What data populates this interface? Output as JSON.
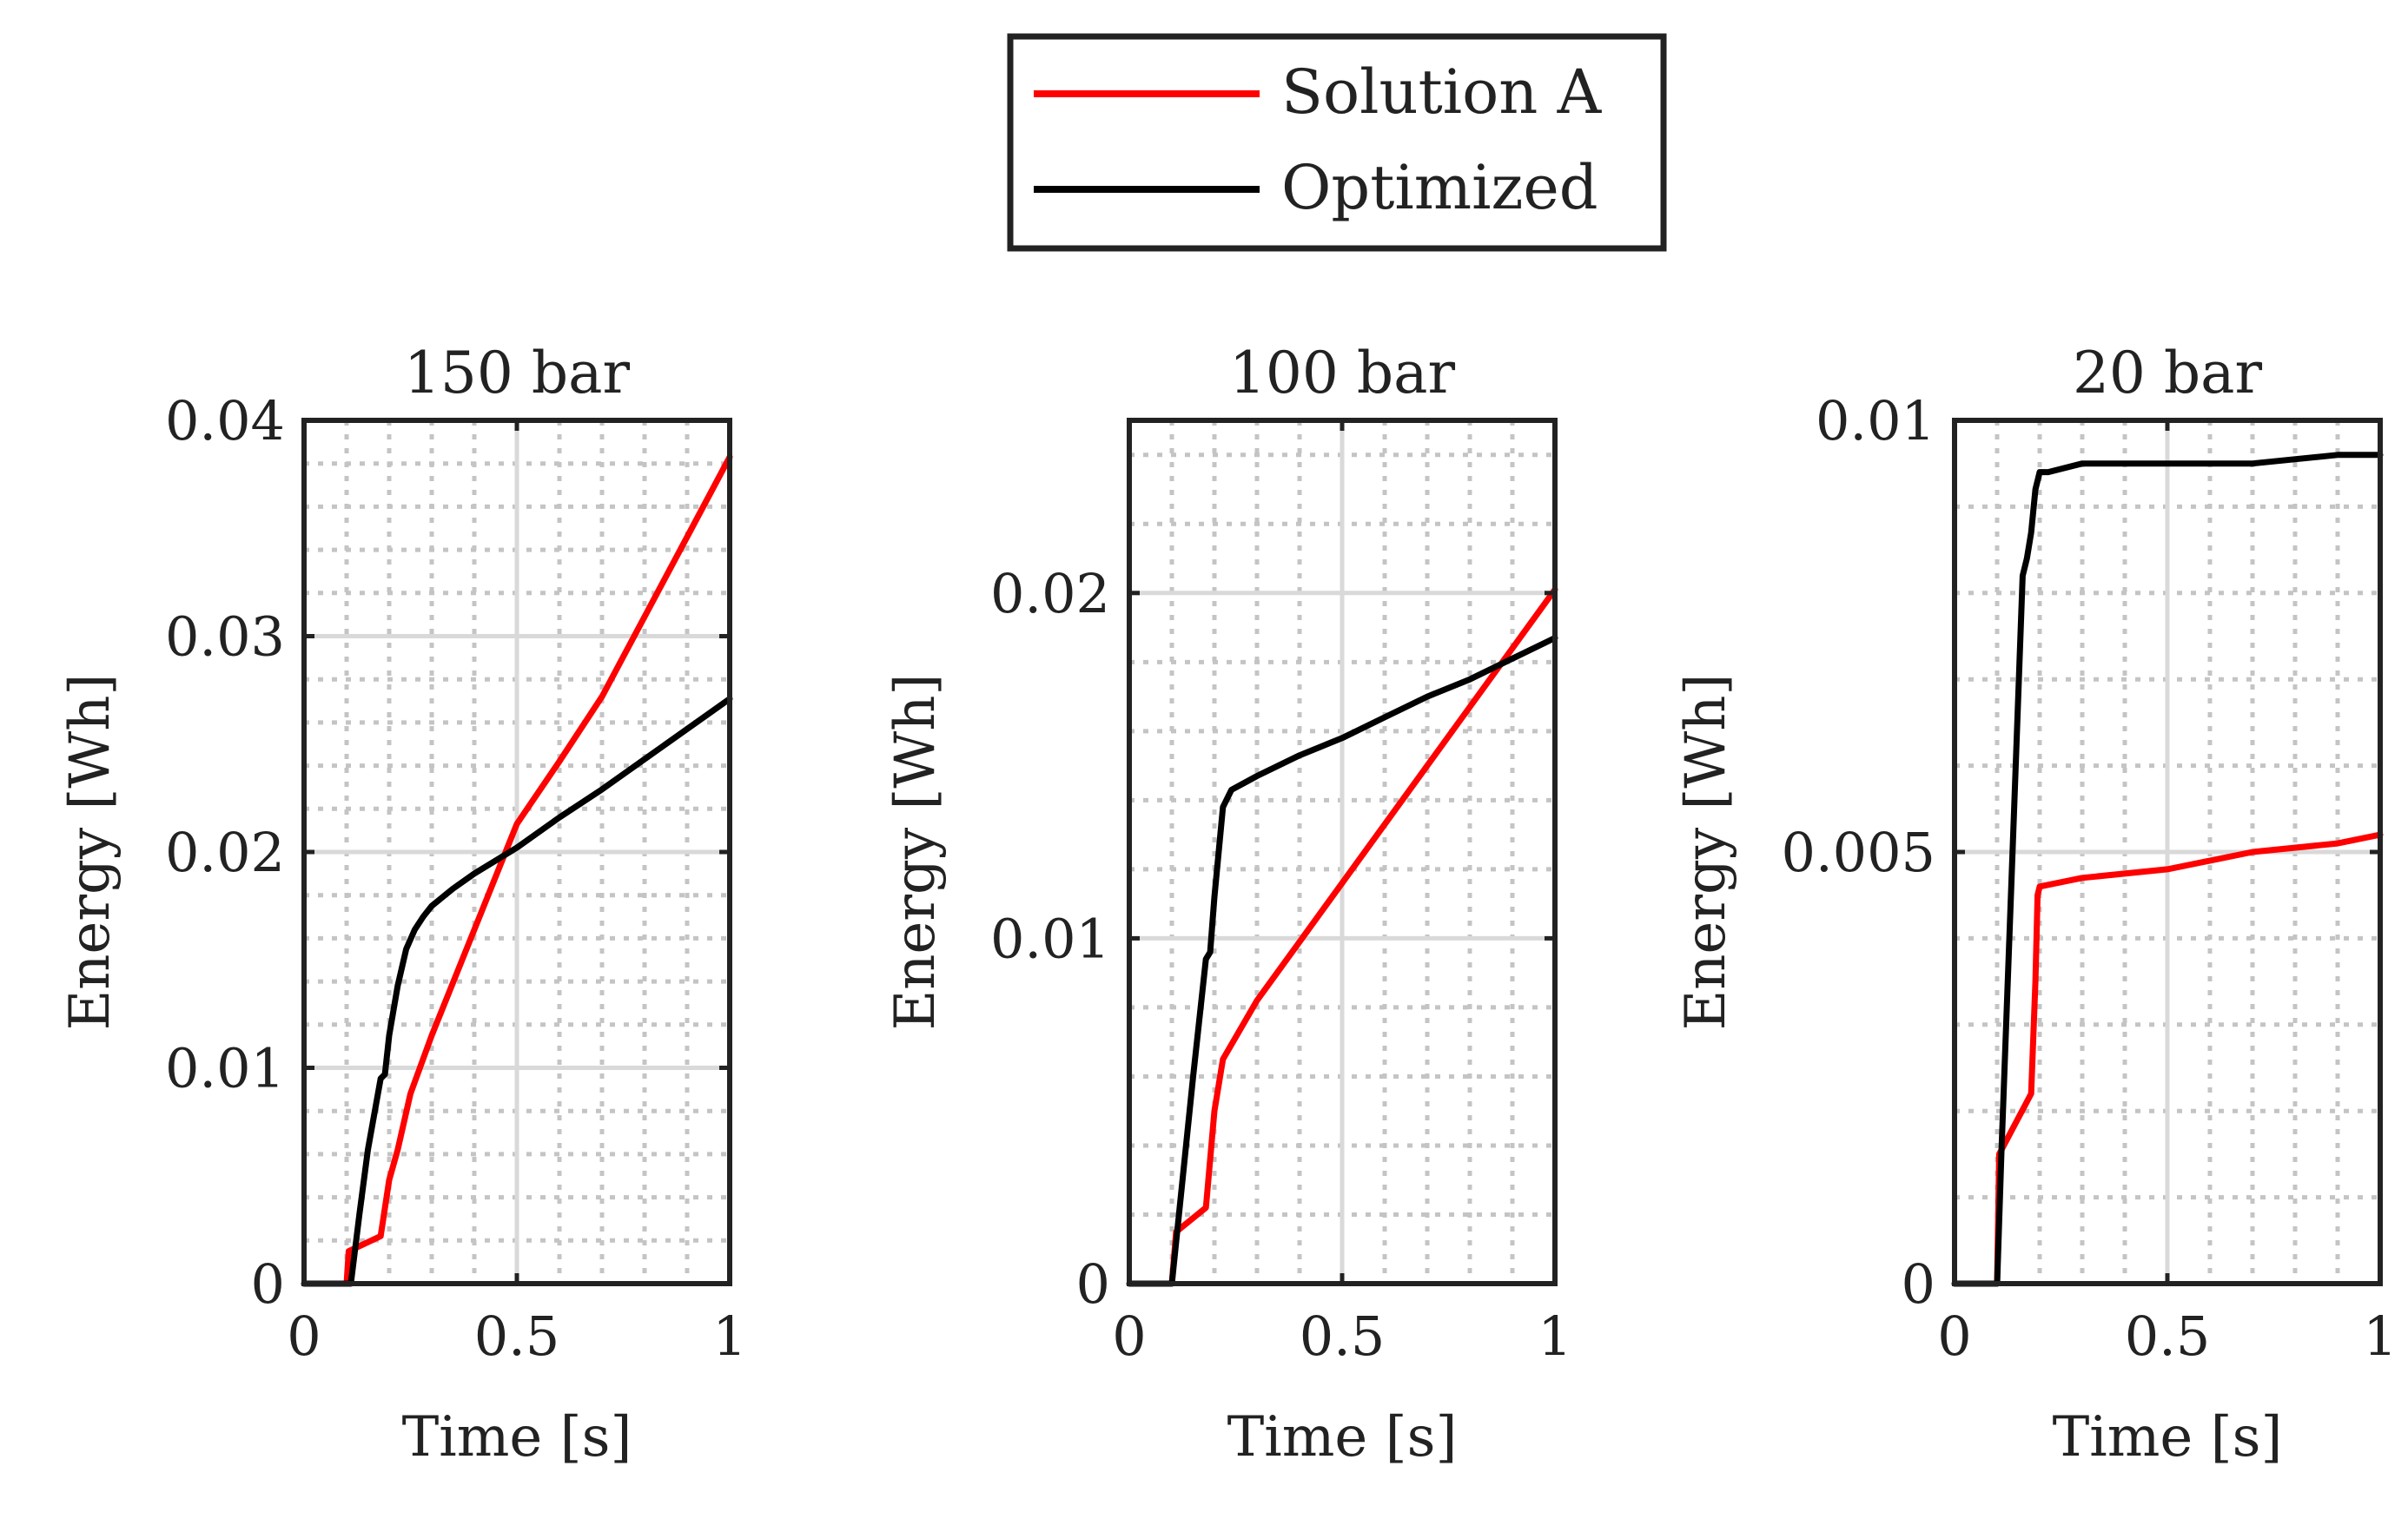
{
  "legend": {
    "items": [
      {
        "label": "Solution A",
        "color": "#ff0000"
      },
      {
        "label": "Optimized",
        "color": "#000000"
      }
    ]
  },
  "chart_data": [
    {
      "type": "line",
      "title": "150 bar",
      "xlabel": "Time [s]",
      "ylabel": "Energy [Wh]",
      "xlim": [
        0,
        1
      ],
      "ylim": [
        0,
        0.04
      ],
      "xticks": [
        0,
        0.5,
        1
      ],
      "xtick_labels": [
        "0",
        "0.5",
        "1"
      ],
      "yticks": [
        0,
        0.01,
        0.02,
        0.03,
        0.04
      ],
      "ytick_labels": [
        "0",
        "0.01",
        "0.02",
        "0.03",
        "0.04"
      ],
      "grid": true,
      "series": [
        {
          "name": "Solution A",
          "color": "#ff0000",
          "x": [
            0.1,
            0.105,
            0.18,
            0.2,
            0.22,
            0.25,
            0.3,
            0.4,
            0.5,
            0.6,
            0.7,
            0.8,
            0.9,
            1.0
          ],
          "y": [
            0,
            0.0015,
            0.0022,
            0.0048,
            0.0062,
            0.0088,
            0.0115,
            0.0164,
            0.0213,
            0.0242,
            0.0272,
            0.0309,
            0.0346,
            0.0383
          ]
        },
        {
          "name": "Optimized",
          "color": "#000000",
          "x": [
            0,
            0.11,
            0.13,
            0.15,
            0.18,
            0.19,
            0.2,
            0.22,
            0.24,
            0.26,
            0.28,
            0.3,
            0.35,
            0.4,
            0.5,
            0.6,
            0.7,
            0.8,
            0.9,
            1.0
          ],
          "y": [
            0,
            0,
            0.0032,
            0.0062,
            0.0095,
            0.0097,
            0.0115,
            0.0138,
            0.0155,
            0.0164,
            0.017,
            0.0175,
            0.0183,
            0.019,
            0.0202,
            0.0216,
            0.0229,
            0.0243,
            0.0257,
            0.0271
          ]
        }
      ]
    },
    {
      "type": "line",
      "title": "100 bar",
      "xlabel": "Time [s]",
      "ylabel": "Energy [Wh]",
      "xlim": [
        0,
        1
      ],
      "ylim": [
        0,
        0.025
      ],
      "xticks": [
        0,
        0.5,
        1
      ],
      "xtick_labels": [
        "0",
        "0.5",
        "1"
      ],
      "yticks": [
        0,
        0.01,
        0.02
      ],
      "ytick_labels": [
        "0",
        "0.01",
        "0.02"
      ],
      "grid": true,
      "series": [
        {
          "name": "Solution A",
          "color": "#ff0000",
          "x": [
            0.1,
            0.11,
            0.18,
            0.2,
            0.22,
            0.3,
            0.4,
            0.5,
            0.6,
            0.7,
            0.8,
            0.9,
            1.0
          ],
          "y": [
            0,
            0.0015,
            0.0022,
            0.005,
            0.0065,
            0.0082,
            0.0099,
            0.0116,
            0.0133,
            0.015,
            0.0167,
            0.0184,
            0.0201
          ]
        },
        {
          "name": "Optimized",
          "color": "#000000",
          "x": [
            0,
            0.1,
            0.11,
            0.15,
            0.18,
            0.19,
            0.2,
            0.22,
            0.24,
            0.27,
            0.3,
            0.4,
            0.5,
            0.6,
            0.7,
            0.8,
            0.9,
            1.0
          ],
          "y": [
            0,
            0,
            0.0012,
            0.006,
            0.0094,
            0.0096,
            0.0112,
            0.0138,
            0.0143,
            0.0145,
            0.0147,
            0.0153,
            0.0158,
            0.0164,
            0.017,
            0.0175,
            0.0181,
            0.0187
          ]
        }
      ]
    },
    {
      "type": "line",
      "title": "20 bar",
      "xlabel": "Time [s]",
      "ylabel": "Energy [Wh]",
      "xlim": [
        0,
        1
      ],
      "ylim": [
        0,
        0.01
      ],
      "xticks": [
        0,
        0.5,
        1
      ],
      "xtick_labels": [
        "0",
        "0.5",
        "1"
      ],
      "yticks": [
        0,
        0.005,
        0.01
      ],
      "ytick_labels": [
        "0",
        "0.005",
        "0.01"
      ],
      "grid": true,
      "series": [
        {
          "name": "Solution A",
          "color": "#ff0000",
          "x": [
            0.1,
            0.105,
            0.18,
            0.19,
            0.195,
            0.2,
            0.3,
            0.5,
            0.7,
            0.9,
            1.0
          ],
          "y": [
            0,
            0.0015,
            0.0022,
            0.0035,
            0.0045,
            0.0046,
            0.0047,
            0.0048,
            0.005,
            0.0051,
            0.0052
          ]
        },
        {
          "name": "Optimized",
          "color": "#000000",
          "x": [
            0,
            0.1,
            0.11,
            0.14,
            0.16,
            0.17,
            0.18,
            0.19,
            0.2,
            0.22,
            0.3,
            0.5,
            0.7,
            0.9,
            1.0
          ],
          "y": [
            0,
            0,
            0.0015,
            0.0055,
            0.0082,
            0.0084,
            0.0087,
            0.0092,
            0.0094,
            0.0094,
            0.0095,
            0.0095,
            0.0095,
            0.0096,
            0.0096
          ]
        }
      ]
    }
  ]
}
